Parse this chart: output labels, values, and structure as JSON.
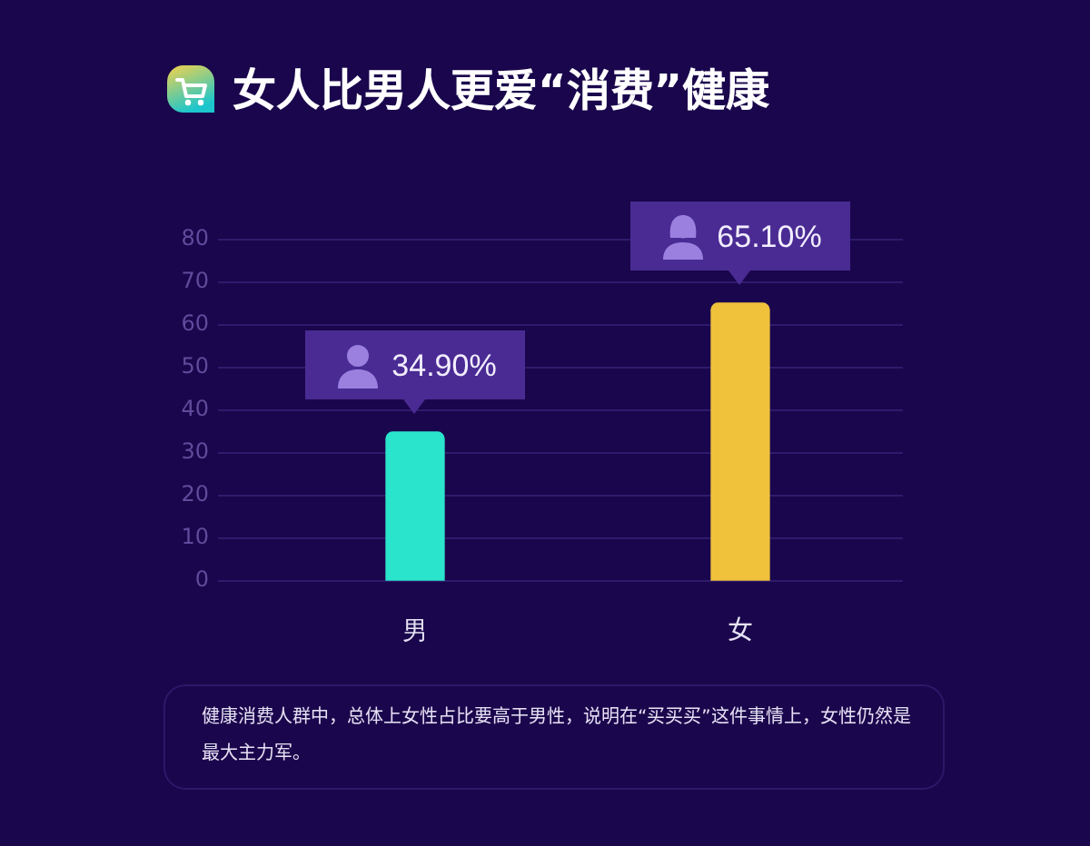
{
  "chart_data": {
    "type": "bar",
    "title": "女人比男人更爱“消费”健康",
    "categories": [
      "男",
      "女"
    ],
    "values": [
      34.9,
      65.1
    ],
    "colors": [
      "#2ae4cc",
      "#f0c23c"
    ],
    "value_labels": [
      "34.90%",
      "65.10%"
    ],
    "ylim": [
      0,
      80
    ],
    "yticks": [
      0,
      10,
      20,
      30,
      40,
      50,
      60,
      70,
      80
    ],
    "grid": "y",
    "annotations": [
      "健康消费人群中，总体上女性占比要高于男性，说明在“买买买”这件事情上，女性仍然是最大主力军。"
    ]
  }
}
